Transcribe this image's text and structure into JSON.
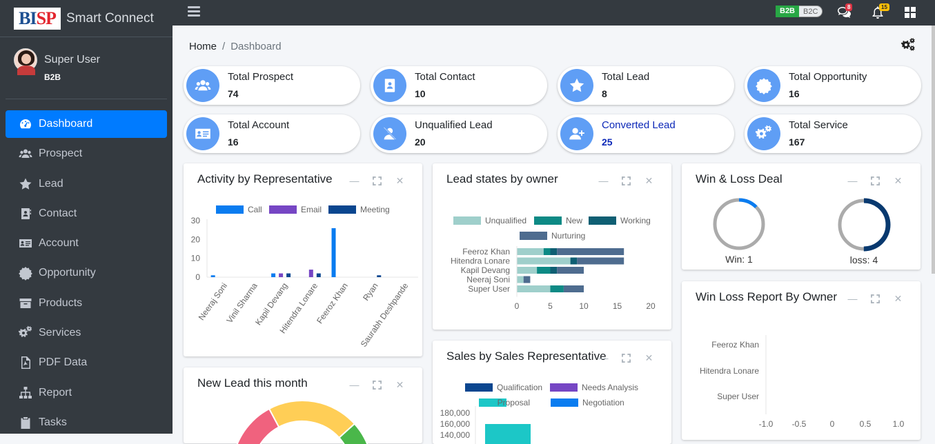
{
  "brand": {
    "logo_a": "BI",
    "logo_b": "SP",
    "name": "Smart Connect"
  },
  "user": {
    "name": "Super User",
    "role": "B2B"
  },
  "nav": {
    "items": [
      {
        "label": "Dashboard",
        "icon": "dashboard-icon",
        "active": true
      },
      {
        "label": "Prospect",
        "icon": "users-icon"
      },
      {
        "label": "Lead",
        "icon": "star-icon"
      },
      {
        "label": "Contact",
        "icon": "contact-book-icon"
      },
      {
        "label": "Account",
        "icon": "id-card-icon"
      },
      {
        "label": "Opportunity",
        "icon": "certificate-icon"
      },
      {
        "label": "Products",
        "icon": "archive-icon"
      },
      {
        "label": "Services",
        "icon": "cogs-icon"
      },
      {
        "label": "PDF Data",
        "icon": "pdf-file-icon"
      },
      {
        "label": "Report",
        "icon": "sitemap-icon"
      },
      {
        "label": "Tasks",
        "icon": "clipboard-icon"
      }
    ]
  },
  "topbar": {
    "toggle_b2b": "B2B",
    "toggle_b2c": "B2C",
    "messages_count": "8",
    "notifications_count": "15"
  },
  "breadcrumb": {
    "home": "Home",
    "separator": "/",
    "current": "Dashboard"
  },
  "stats": [
    {
      "label": "Total Prospect",
      "value": "74",
      "icon": "users-icon"
    },
    {
      "label": "Total Contact",
      "value": "10",
      "icon": "contact-book-icon"
    },
    {
      "label": "Total Lead",
      "value": "8",
      "icon": "star-icon"
    },
    {
      "label": "Total Opportunity",
      "value": "16",
      "icon": "certificate-icon"
    },
    {
      "label": "Total Account",
      "value": "16",
      "icon": "id-card-icon"
    },
    {
      "label": "Unqualified Lead",
      "value": "20",
      "icon": "user-slash-icon"
    },
    {
      "label": "Converted Lead",
      "value": "25",
      "icon": "user-plus-icon"
    },
    {
      "label": "Total Service",
      "value": "167",
      "icon": "cogs-icon"
    }
  ],
  "panels": {
    "activity": "Activity by Representative",
    "lead_states": "Lead states by owner",
    "win_loss": "Win & Loss Deal",
    "new_lead": "New Lead this month",
    "sales": "Sales by Sales Representative",
    "win_loss_owner": "Win Loss Report By Owner"
  },
  "chart_data": [
    {
      "type": "bar",
      "title": "Activity by Representative",
      "categories": [
        "Neeraj Soni",
        "Vinil Sharma",
        "Kapil Devang",
        "Hitendra Lonare",
        "Feeroz Khan",
        "Ryan",
        "Saurabh Deshpande"
      ],
      "series": [
        {
          "name": "Call",
          "color": "#0a7cf0",
          "values": [
            1,
            0,
            2,
            0,
            26,
            0,
            0
          ]
        },
        {
          "name": "Email",
          "color": "#7646c4",
          "values": [
            0,
            0,
            2,
            4,
            0,
            0,
            0
          ]
        },
        {
          "name": "Meeting",
          "color": "#0a468f",
          "values": [
            0,
            0,
            2,
            2,
            0,
            1,
            0
          ]
        }
      ],
      "yticks": [
        "30",
        "20",
        "10",
        "0"
      ],
      "ylim": [
        0,
        30
      ]
    },
    {
      "type": "bar",
      "orientation": "horizontal",
      "stacked": true,
      "title": "Lead states by owner",
      "categories": [
        "Feeroz Khan",
        "Hitendra Lonare",
        "Kapil Devang",
        "Neeraj Soni",
        "Super User"
      ],
      "series": [
        {
          "name": "Unqualified",
          "color": "#9fcfcb",
          "values": [
            4,
            8,
            3,
            1,
            5
          ]
        },
        {
          "name": "New",
          "color": "#0d8a85",
          "values": [
            1,
            0,
            2,
            0,
            2
          ]
        },
        {
          "name": "Working",
          "color": "#0f5f73",
          "values": [
            1,
            1,
            1,
            0,
            0
          ]
        },
        {
          "name": "Nurturing",
          "color": "#4e6c8f",
          "values": [
            10,
            7,
            4,
            1,
            3
          ]
        }
      ],
      "xticks": [
        "0",
        "5",
        "10",
        "15",
        "20"
      ],
      "xlim": [
        0,
        20
      ]
    },
    {
      "type": "pie",
      "title": "Win & Loss Deal",
      "charts": [
        {
          "label": "Win: 1",
          "value": 1,
          "of": 8,
          "color": "#0a7cf0",
          "rest_color": "#ababab"
        },
        {
          "label": "loss: 4",
          "value": 4,
          "of": 8,
          "color": "#08396f",
          "rest_color": "#ababab"
        }
      ]
    },
    {
      "type": "bar",
      "title": "Sales by Sales Representative",
      "series": [
        {
          "name": "Qualification",
          "color": "#0a468f"
        },
        {
          "name": "Needs Analysis",
          "color": "#7646c4"
        },
        {
          "name": "Proposal",
          "color": "#1cc7c7"
        },
        {
          "name": "Negotiation",
          "color": "#0a7cf0"
        }
      ],
      "yticks": [
        "180,000",
        "160,000",
        "140,000"
      ]
    },
    {
      "type": "bar",
      "orientation": "horizontal",
      "title": "Win Loss Report By Owner",
      "categories": [
        "Feeroz Khan",
        "Hitendra Lonare",
        "Super User"
      ],
      "xticks": [
        "-1.0",
        "-0.5",
        "0",
        "0.5",
        "1.0"
      ],
      "xlim": [
        -1,
        1
      ]
    },
    {
      "type": "pie",
      "title": "New Lead this month",
      "colors": [
        "#f0627e",
        "#ffce56",
        "#4ab74a"
      ]
    }
  ]
}
